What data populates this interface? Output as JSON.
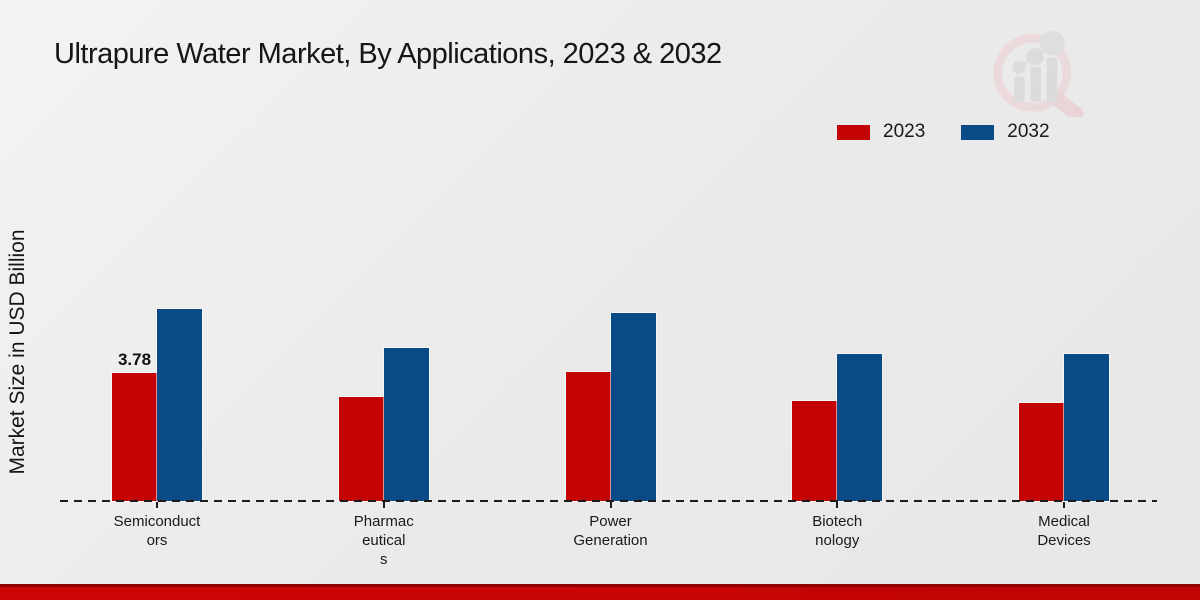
{
  "page": {
    "title": "Ultrapure Water Market, By Applications, 2023 & 2032",
    "y_axis_label": "Market Size in USD Billion"
  },
  "colors": {
    "series_2023": "#c40404",
    "series_2032": "#0a4a87",
    "background": "#ebebeb",
    "baseline": "#1c1c1c",
    "bottom_strip": "#c00303"
  },
  "legend": {
    "position": "top-right",
    "items": [
      {
        "label": "2023",
        "color": "#c40404"
      },
      {
        "label": "2032",
        "color": "#0a4a87"
      }
    ]
  },
  "watermark": {
    "name": "magnifier-bar-chart-logo"
  },
  "chart_data": {
    "type": "bar",
    "title": "Ultrapure Water Market, By Applications, 2023 & 2032",
    "xlabel": "",
    "ylabel": "Market Size in USD Billion",
    "categories": [
      "Semiconductors",
      "Pharmaceuticals",
      "Power Generation",
      "Biotechnology",
      "Medical Devices"
    ],
    "category_label_lines": [
      [
        "Semiconduct",
        "ors"
      ],
      [
        "Pharmac",
        "eutical",
        "s"
      ],
      [
        "Power",
        "Generation"
      ],
      [
        "Biotech",
        "nology"
      ],
      [
        "Medical",
        "Devices"
      ]
    ],
    "series": [
      {
        "name": "2023",
        "color": "#c40404",
        "values": [
          3.78,
          3.07,
          3.81,
          2.95,
          2.89
        ]
      },
      {
        "name": "2032",
        "color": "#0a4a87",
        "values": [
          5.65,
          4.52,
          5.55,
          4.34,
          4.34
        ]
      }
    ],
    "data_labels": [
      {
        "series": "2023",
        "category": "Semiconductors",
        "text": "3.78"
      }
    ],
    "ylim": [
      0,
      6
    ],
    "grid": false,
    "baseline_style": "dashed",
    "legend_position": "top-right"
  }
}
